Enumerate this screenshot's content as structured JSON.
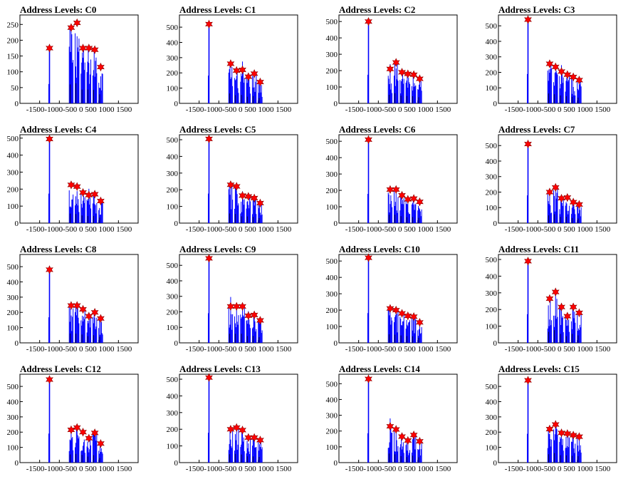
{
  "colors": {
    "bars": "#0000ff",
    "peak_marker": "#ff0000",
    "marker_outline": "#8b0000",
    "axis": "#000000"
  },
  "shared_axes": {
    "x_ticks": [
      -1500,
      -1000,
      -500,
      0,
      500,
      1000,
      1500
    ],
    "x_tick_labels": [
      "-1500",
      "-1000",
      "-500",
      "0",
      "500",
      "1000",
      "1500"
    ],
    "x_label_strip": "-1500-1000-500 0 500 1000 1500",
    "xlim": [
      -1500,
      1500
    ],
    "grid": false,
    "legend": "none"
  },
  "chart_data": [
    {
      "type": "bar",
      "title": "Address Levels: C0",
      "ylim": [
        0,
        280
      ],
      "y_ticks": [
        0,
        50,
        100,
        150,
        200,
        250
      ],
      "peaks": {
        "x": [
          -750,
          -200,
          -50,
          100,
          250,
          400,
          550
        ],
        "y": [
          175,
          240,
          255,
          175,
          175,
          170,
          115
        ]
      }
    },
    {
      "type": "bar",
      "title": "Address Levels: C1",
      "ylim": [
        0,
        580
      ],
      "y_ticks": [
        0,
        100,
        200,
        300,
        400,
        500
      ],
      "peaks": {
        "x": [
          -750,
          -200,
          -50,
          100,
          250,
          400,
          550
        ],
        "y": [
          520,
          260,
          215,
          220,
          175,
          195,
          140
        ]
      }
    },
    {
      "type": "bar",
      "title": "Address Levels: C2",
      "ylim": [
        0,
        540
      ],
      "y_ticks": [
        0,
        100,
        200,
        300,
        400,
        500
      ],
      "peaks": {
        "x": [
          -750,
          -200,
          -50,
          100,
          250,
          400,
          550
        ],
        "y": [
          500,
          210,
          250,
          190,
          180,
          175,
          150
        ]
      }
    },
    {
      "type": "bar",
      "title": "Address Levels: C3",
      "ylim": [
        0,
        570
      ],
      "y_ticks": [
        0,
        100,
        200,
        300,
        400,
        500
      ],
      "peaks": {
        "x": [
          -750,
          -200,
          -50,
          100,
          250,
          400,
          550
        ],
        "y": [
          540,
          255,
          235,
          205,
          185,
          170,
          150
        ]
      }
    },
    {
      "type": "bar",
      "title": "Address Levels: C4",
      "ylim": [
        0,
        520
      ],
      "y_ticks": [
        0,
        100,
        200,
        300,
        400,
        500
      ],
      "peaks": {
        "x": [
          -750,
          -200,
          -50,
          100,
          250,
          400,
          550
        ],
        "y": [
          495,
          225,
          215,
          180,
          165,
          170,
          130
        ]
      }
    },
    {
      "type": "bar",
      "title": "Address Levels: C5",
      "ylim": [
        0,
        530
      ],
      "y_ticks": [
        0,
        100,
        200,
        300,
        400,
        500
      ],
      "peaks": {
        "x": [
          -750,
          -200,
          -50,
          100,
          250,
          400,
          550
        ],
        "y": [
          505,
          230,
          220,
          165,
          160,
          150,
          120
        ]
      }
    },
    {
      "type": "bar",
      "title": "Address Levels: C6",
      "ylim": [
        0,
        540
      ],
      "y_ticks": [
        0,
        100,
        200,
        300,
        400,
        500
      ],
      "peaks": {
        "x": [
          -750,
          -200,
          -50,
          100,
          250,
          400,
          550
        ],
        "y": [
          510,
          205,
          205,
          170,
          145,
          150,
          130
        ]
      }
    },
    {
      "type": "bar",
      "title": "Address Levels: C7",
      "ylim": [
        0,
        570
      ],
      "y_ticks": [
        0,
        100,
        200,
        300,
        400,
        500
      ],
      "peaks": {
        "x": [
          -750,
          -200,
          -50,
          100,
          250,
          400,
          550
        ],
        "y": [
          510,
          200,
          230,
          160,
          165,
          135,
          120
        ]
      }
    },
    {
      "type": "bar",
      "title": "Address Levels: C8",
      "ylim": [
        0,
        580
      ],
      "y_ticks": [
        0,
        100,
        200,
        300,
        400,
        500
      ],
      "peaks": {
        "x": [
          -750,
          -200,
          -50,
          100,
          250,
          400,
          550
        ],
        "y": [
          480,
          245,
          245,
          220,
          175,
          200,
          160
        ]
      }
    },
    {
      "type": "bar",
      "title": "Address Levels: C9",
      "ylim": [
        0,
        570
      ],
      "y_ticks": [
        0,
        100,
        200,
        300,
        400,
        500
      ],
      "peaks": {
        "x": [
          -750,
          -200,
          -50,
          100,
          250,
          400,
          550
        ],
        "y": [
          545,
          235,
          235,
          235,
          175,
          180,
          145
        ]
      }
    },
    {
      "type": "bar",
      "title": "Address Levels: C10",
      "ylim": [
        0,
        540
      ],
      "y_ticks": [
        0,
        100,
        200,
        300,
        400,
        500
      ],
      "peaks": {
        "x": [
          -750,
          -200,
          -50,
          100,
          250,
          400,
          550
        ],
        "y": [
          520,
          210,
          200,
          180,
          165,
          160,
          125
        ]
      }
    },
    {
      "type": "bar",
      "title": "Address Levels: C11",
      "ylim": [
        0,
        530
      ],
      "y_ticks": [
        0,
        100,
        200,
        300,
        400,
        500
      ],
      "peaks": {
        "x": [
          -750,
          -200,
          -50,
          100,
          250,
          400,
          550
        ],
        "y": [
          490,
          265,
          305,
          215,
          160,
          215,
          180
        ]
      }
    },
    {
      "type": "bar",
      "title": "Address Levels: C12",
      "ylim": [
        0,
        580
      ],
      "y_ticks": [
        0,
        100,
        200,
        300,
        400,
        500
      ],
      "peaks": {
        "x": [
          -750,
          -200,
          -50,
          100,
          250,
          400,
          550
        ],
        "y": [
          545,
          215,
          230,
          200,
          160,
          195,
          125
        ]
      }
    },
    {
      "type": "bar",
      "title": "Address Levels: C13",
      "ylim": [
        0,
        530
      ],
      "y_ticks": [
        0,
        100,
        200,
        300,
        400,
        500
      ],
      "peaks": {
        "x": [
          -750,
          -200,
          -50,
          100,
          250,
          400,
          550
        ],
        "y": [
          510,
          200,
          210,
          195,
          150,
          150,
          135
        ]
      }
    },
    {
      "type": "bar",
      "title": "Address Levels: C14",
      "ylim": [
        0,
        560
      ],
      "y_ticks": [
        0,
        100,
        200,
        300,
        400,
        500
      ],
      "peaks": {
        "x": [
          -750,
          -200,
          -50,
          100,
          250,
          400,
          550
        ],
        "y": [
          530,
          230,
          210,
          165,
          140,
          175,
          135
        ]
      }
    },
    {
      "type": "bar",
      "title": "Address Levels: C15",
      "ylim": [
        0,
        580
      ],
      "y_ticks": [
        0,
        100,
        200,
        300,
        400,
        500
      ],
      "peaks": {
        "x": [
          -750,
          -200,
          -50,
          100,
          250,
          400,
          550
        ],
        "y": [
          540,
          220,
          250,
          195,
          190,
          180,
          170
        ]
      }
    }
  ]
}
